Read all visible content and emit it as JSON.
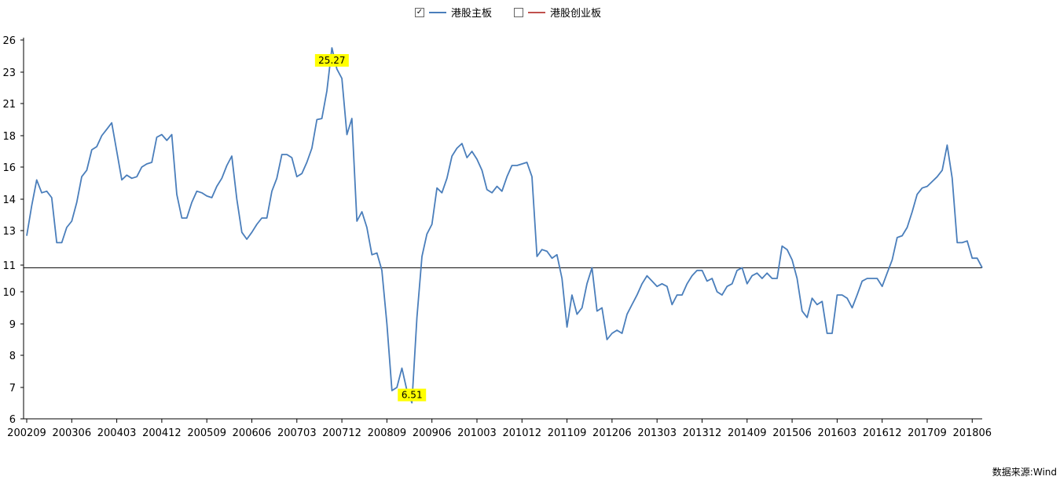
{
  "legend": {
    "main_board": {
      "label": "港股主板",
      "checked": true,
      "color": "#4a7ebb"
    },
    "gem_board": {
      "label": "港股创业板",
      "checked": false,
      "color": "#c0504d"
    }
  },
  "source": "数据来源:Wind",
  "chart_data": {
    "type": "line",
    "y_ticks": [
      "6",
      "7",
      "8",
      "9",
      "10",
      "11",
      "13",
      "14",
      "16",
      "18",
      "21",
      "23",
      "26"
    ],
    "x_ticks": [
      "200209",
      "200306",
      "200403",
      "200412",
      "200509",
      "200606",
      "200703",
      "200712",
      "200809",
      "200906",
      "201003",
      "201012",
      "201109",
      "201206",
      "201303",
      "201312",
      "201409",
      "201506",
      "201603",
      "201612",
      "201709",
      "201806"
    ],
    "reference_line": 10.9,
    "annotations": [
      {
        "label": "25.27",
        "x": "200710",
        "y": 25.27
      },
      {
        "label": "6.51",
        "x": "200902",
        "y": 6.51
      }
    ],
    "series": [
      {
        "name": "港股主板",
        "color": "#4a7ebb",
        "start": "200209",
        "values": [
          12.7,
          13.8,
          15.2,
          14.4,
          14.5,
          14.1,
          12.3,
          12.3,
          13.1,
          13.3,
          13.9,
          15.4,
          15.8,
          17.1,
          17.3,
          18.0,
          18.6,
          19.2,
          17.0,
          15.2,
          15.5,
          15.3,
          15.4,
          16.0,
          16.2,
          16.3,
          17.9,
          18.1,
          17.7,
          18.1,
          14.3,
          13.4,
          13.4,
          13.9,
          14.5,
          14.4,
          14.2,
          14.1,
          14.8,
          15.3,
          16.1,
          16.7,
          14.0,
          12.9,
          12.5,
          12.9,
          13.2,
          13.4,
          13.4,
          14.5,
          15.3,
          16.8,
          16.8,
          16.6,
          15.4,
          15.6,
          16.3,
          17.2,
          19.5,
          19.6,
          21.8,
          25.27,
          23.3,
          22.6,
          18.1,
          19.6,
          13.3,
          13.6,
          13.1,
          11.6,
          11.7,
          10.8,
          9.0,
          6.9,
          7.0,
          7.6,
          6.9,
          6.51,
          9.2,
          11.5,
          12.8,
          13.2,
          14.7,
          14.4,
          15.3,
          16.7,
          17.2,
          17.5,
          16.6,
          17.0,
          16.5,
          15.8,
          14.6,
          14.4,
          14.8,
          14.5,
          15.4,
          16.1,
          16.1,
          16.2,
          16.3,
          15.4,
          11.5,
          11.9,
          11.8,
          11.4,
          11.6,
          10.5,
          8.9,
          9.9,
          9.3,
          9.5,
          10.3,
          10.9,
          9.4,
          9.5,
          8.5,
          8.7,
          8.8,
          8.7,
          9.3,
          9.6,
          9.9,
          10.3,
          10.6,
          10.4,
          10.2,
          10.3,
          10.2,
          9.6,
          9.9,
          9.9,
          10.3,
          10.6,
          10.8,
          10.8,
          10.4,
          10.5,
          10.0,
          9.9,
          10.2,
          10.3,
          10.8,
          10.9,
          10.3,
          10.6,
          10.7,
          10.5,
          10.7,
          10.5,
          10.5,
          12.1,
          11.9,
          11.3,
          10.5,
          9.4,
          9.2,
          9.8,
          9.6,
          9.7,
          8.7,
          8.7,
          9.9,
          9.9,
          9.8,
          9.5,
          9.9,
          10.4,
          10.5,
          10.5,
          10.5,
          10.2,
          10.7,
          11.3,
          12.6,
          12.7,
          13.1,
          13.6,
          14.3,
          14.7,
          14.8,
          15.1,
          15.4,
          15.8,
          17.4,
          15.3,
          12.3,
          12.3,
          12.4,
          11.4,
          11.4,
          10.9
        ]
      }
    ]
  }
}
